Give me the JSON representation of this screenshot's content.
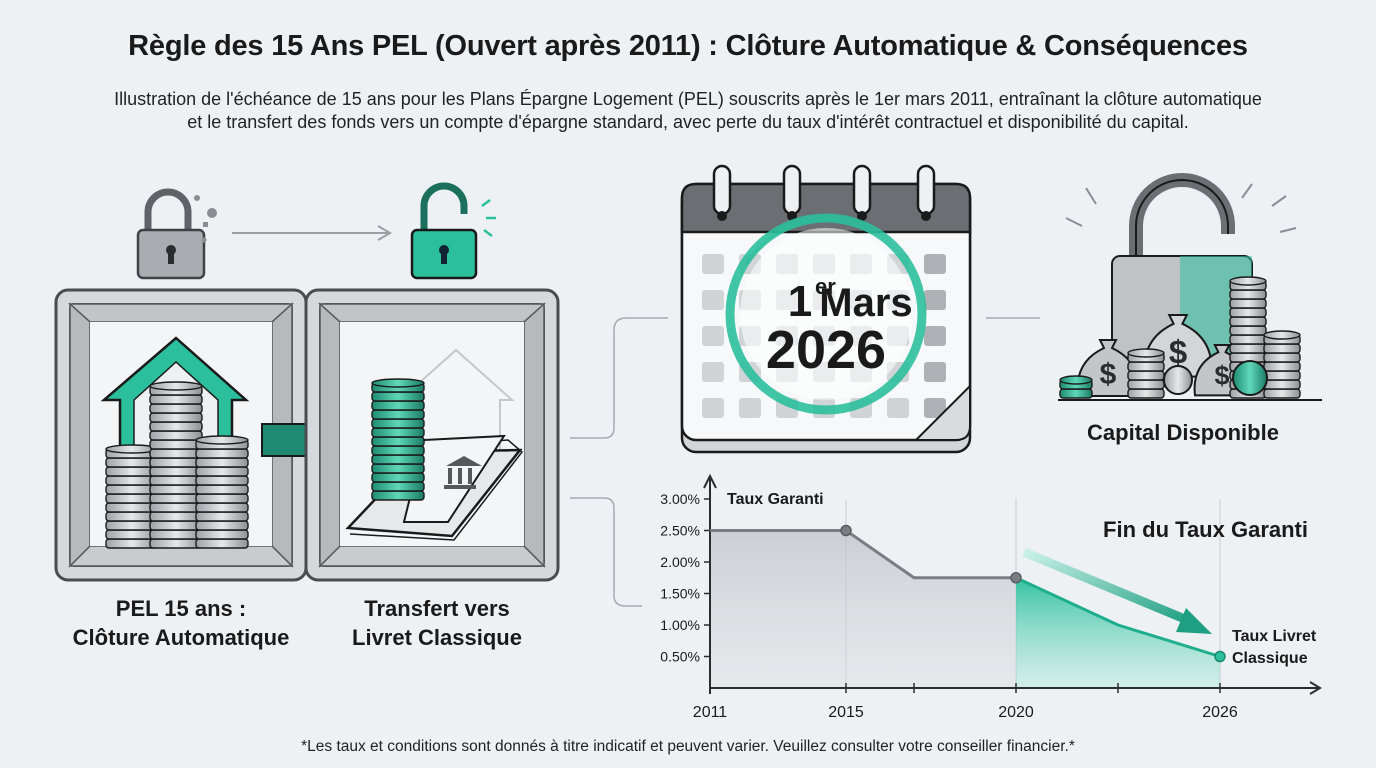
{
  "title": "Règle des 15 Ans PEL (Ouvert après 2011) : Clôture Automatique & Conséquences",
  "subtitle_line1": "Illustration de l'échéance de 15 ans pour les Plans Épargne Logement (PEL) souscrits après le 1er mars 2011, entraînant la clôture automatique",
  "subtitle_line2": "et le transfert des fonds vers un compte d'épargne standard, avec perte du taux d'intérêt contractuel et disponibilité du capital.",
  "panel_left": {
    "label_line1": "PEL 15 ans :",
    "label_line2": "Clôture Automatique"
  },
  "panel_transfer": {
    "label_line1": "Transfert vers",
    "label_line2": "Livret Classique"
  },
  "calendar": {
    "day": "1",
    "day_sup": "er",
    "month": "Mars",
    "year": "2026"
  },
  "capital": {
    "label": "Capital Disponible"
  },
  "chart_data": {
    "type": "line",
    "x": [
      2011,
      2015,
      2017,
      2020,
      2023,
      2026
    ],
    "series": [
      {
        "values": [
          2.5,
          2.5,
          1.75,
          1.75,
          1.0,
          0.5
        ]
      }
    ],
    "xticks": [
      "2011",
      "2015",
      "2020",
      "2026"
    ],
    "yticks": [
      "3.00%",
      "2.50%",
      "2.00%",
      "1.50%",
      "1.00%",
      "0.50%"
    ],
    "ylim": [
      0,
      3.0
    ],
    "xlim": [
      2011,
      2026
    ],
    "grid": "vertical",
    "annotations": {
      "taux_garanti": "Taux Garanti",
      "fin_taux": "Fin du Taux Garanti",
      "livret_line1": "Taux Livret",
      "livret_line2": "Classique"
    },
    "highlight_from": 2020
  },
  "footnote": "*Les taux et conditions sont donnés à titre indicatif et peuvent varier. Veuillez consulter votre conseiller financier.*",
  "colors": {
    "accent": "#2bbf9c",
    "accent_dark": "#1f8a72",
    "gray": "#6b6f73"
  }
}
